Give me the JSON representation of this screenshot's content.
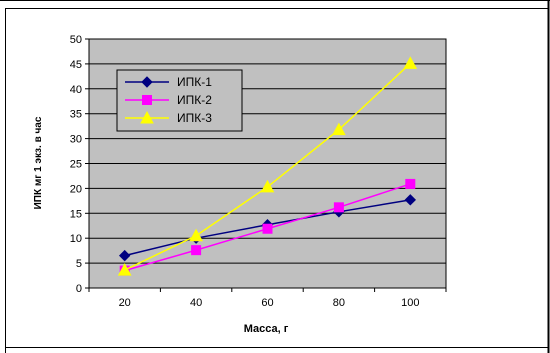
{
  "colors": {
    "plot_bg": "#c0c0c0",
    "grid": "#000000",
    "border": "#000000"
  },
  "chart_data": {
    "type": "line",
    "x": [
      20,
      40,
      60,
      80,
      100
    ],
    "xlabel": "Масса, г",
    "ylabel": "ИПК мг 1 экз. в час",
    "xticks": [
      "20",
      "40",
      "60",
      "80",
      "100"
    ],
    "yticks": [
      "0",
      "5",
      "10",
      "15",
      "20",
      "25",
      "30",
      "35",
      "40",
      "45",
      "50"
    ],
    "ylim": [
      0,
      50
    ],
    "grid": "horizontal",
    "legend_position": "top-left, inside plot",
    "series": [
      {
        "name": "ИПК-1",
        "color": "#000080",
        "marker": "diamond",
        "values": [
          6.5,
          10,
          12.7,
          15.3,
          17.7
        ]
      },
      {
        "name": "ИПК-2",
        "color": "#ff00ff",
        "marker": "square",
        "values": [
          3.5,
          7.6,
          11.9,
          16.2,
          20.9
        ]
      },
      {
        "name": "ИПК-3",
        "color": "#ffff00",
        "marker": "triangle",
        "values": [
          3.6,
          10.5,
          20.3,
          31.8,
          45.1
        ]
      }
    ]
  }
}
